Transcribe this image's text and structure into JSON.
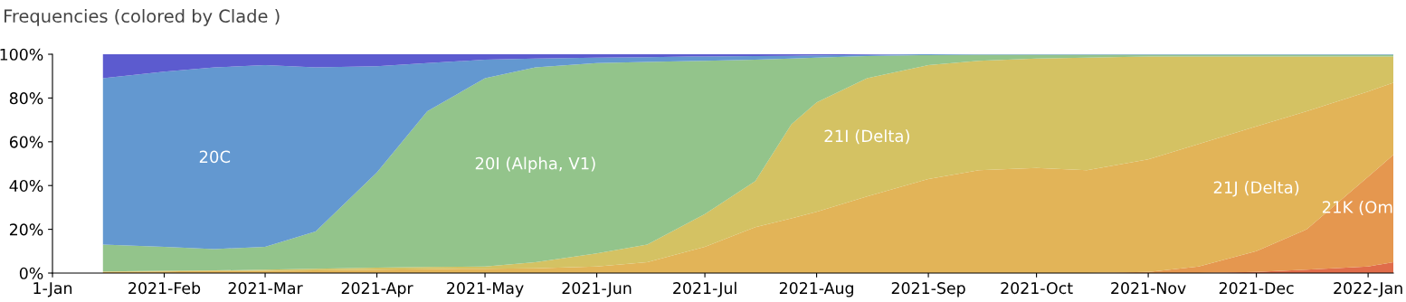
{
  "chart_data": {
    "type": "area",
    "stacked": true,
    "title": "Frequencies (colored by Clade )",
    "x": [
      "2021-01-15",
      "2021-02-01",
      "2021-02-15",
      "2021-03-01",
      "2021-03-15",
      "2021-04-01",
      "2021-04-15",
      "2021-05-01",
      "2021-05-15",
      "2021-06-01",
      "2021-06-15",
      "2021-07-01",
      "2021-07-15",
      "2021-07-25",
      "2021-08-01",
      "2021-08-15",
      "2021-09-01",
      "2021-09-15",
      "2021-10-01",
      "2021-10-15",
      "2021-11-01",
      "2021-11-15",
      "2021-12-01",
      "2021-12-15",
      "2022-01-01",
      "2022-01-08"
    ],
    "series": [
      {
        "color": "#e06c4a",
        "values": [
          0,
          0,
          0,
          0,
          0,
          0,
          0,
          0,
          0,
          0,
          0,
          0,
          0,
          0,
          0,
          0,
          0,
          0,
          0,
          0,
          0,
          0,
          0.5,
          1.5,
          3,
          5
        ]
      },
      {
        "name": "21K (Om",
        "color": "#e5974f",
        "values": [
          0,
          0,
          0,
          0,
          0,
          0,
          0,
          0,
          0,
          0,
          0,
          0,
          0,
          0,
          0,
          0,
          0,
          0,
          0,
          0,
          0.5,
          3,
          9.5,
          18.5,
          41,
          49
        ]
      },
      {
        "name": "21J (Delta)",
        "color": "#e2b458",
        "values": [
          0.5,
          0.7,
          1,
          1,
          1.2,
          1.5,
          1.8,
          2,
          2.2,
          3,
          5,
          12,
          21,
          25,
          28,
          35,
          43,
          47,
          48,
          47,
          51.5,
          56,
          57,
          54,
          39,
          33
        ]
      },
      {
        "name": "21I (Delta)",
        "color": "#d4c263",
        "values": [
          0.2,
          0.3,
          0.2,
          0.5,
          0.8,
          1,
          1,
          1,
          2.8,
          6,
          8,
          15,
          21,
          43,
          50,
          54,
          52,
          50,
          50,
          51.5,
          47,
          40,
          32,
          25,
          16,
          12
        ]
      },
      {
        "name": "20I (Alpha, V1)",
        "color": "#93c48b",
        "values": [
          12.3,
          11,
          9.8,
          10.5,
          17,
          43.5,
          71.2,
          86,
          89,
          87,
          83.5,
          70,
          55.5,
          30,
          20.5,
          10.2,
          4.6,
          2.8,
          1.8,
          1.3,
          0.8,
          0.8,
          0.8,
          0.8,
          0.8,
          0.8
        ]
      },
      {
        "name": "20C",
        "color": "#6398d0",
        "values": [
          76,
          80,
          83,
          83,
          75,
          48.5,
          22,
          8.5,
          4,
          2.5,
          2.2,
          2,
          1.7,
          1.3,
          1,
          0.5,
          0.4,
          0.2,
          0.2,
          0.2,
          0.2,
          0.2,
          0.2,
          0.2,
          0.2,
          0.2
        ]
      },
      {
        "color": "#5c5bcf",
        "values": [
          11,
          8,
          6,
          5,
          6,
          5.5,
          4,
          2.5,
          2,
          1.5,
          1.3,
          1,
          0.8,
          0.7,
          0.5,
          0.3,
          0,
          0,
          0,
          0,
          0,
          0,
          0,
          0,
          0,
          0
        ]
      }
    ],
    "xlim": [
      "2021-01-01",
      "2022-01-08"
    ],
    "xticks": [
      {
        "value": "2021-01-01",
        "label": "1-Jan"
      },
      {
        "value": "2021-02-01",
        "label": "2021-Feb"
      },
      {
        "value": "2021-03-01",
        "label": "2021-Mar"
      },
      {
        "value": "2021-04-01",
        "label": "2021-Apr"
      },
      {
        "value": "2021-05-01",
        "label": "2021-May"
      },
      {
        "value": "2021-06-01",
        "label": "2021-Jun"
      },
      {
        "value": "2021-07-01",
        "label": "2021-Jul"
      },
      {
        "value": "2021-08-01",
        "label": "2021-Aug"
      },
      {
        "value": "2021-09-01",
        "label": "2021-Sep"
      },
      {
        "value": "2021-10-01",
        "label": "2021-Oct"
      },
      {
        "value": "2021-11-01",
        "label": "2021-Nov"
      },
      {
        "value": "2021-12-01",
        "label": "2021-Dec"
      },
      {
        "value": "2022-01-01",
        "label": "2022-Jan"
      }
    ],
    "ylim": [
      0,
      100
    ],
    "yticks": [
      {
        "value": 0,
        "label": "0%"
      },
      {
        "value": 20,
        "label": "20%"
      },
      {
        "value": 40,
        "label": "40%"
      },
      {
        "value": 60,
        "label": "60%"
      },
      {
        "value": 80,
        "label": "80%"
      },
      {
        "value": 100,
        "label": "100%"
      }
    ],
    "grid": false,
    "legend": false
  }
}
